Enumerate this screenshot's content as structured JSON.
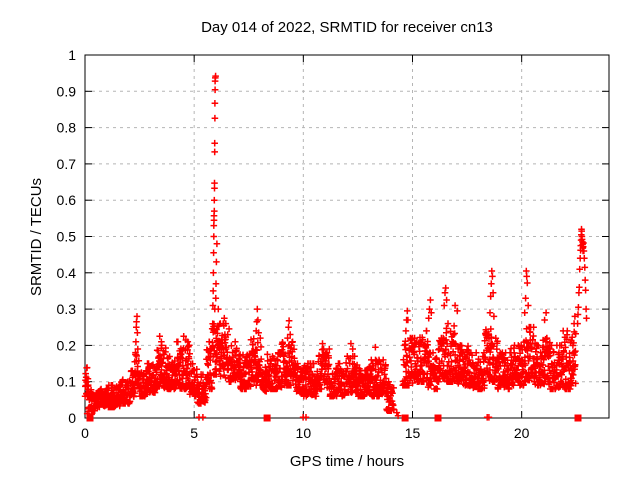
{
  "title": "Day 014 of 2022, SRMTID for receiver cn13",
  "x_axis": {
    "label": "GPS time / hours",
    "min": 0,
    "max": 24,
    "ticks": [
      [
        0,
        "0"
      ],
      [
        5,
        "5"
      ],
      [
        10,
        "10"
      ],
      [
        15,
        "15"
      ],
      [
        20,
        "20"
      ]
    ],
    "grid_values": [
      5,
      10,
      15,
      20
    ]
  },
  "y_axis": {
    "label": "SRMTID / TECUs",
    "min": 0,
    "max": 1,
    "ticks": [
      [
        0,
        "0"
      ],
      [
        0.1,
        "0.1"
      ],
      [
        0.2,
        "0.2"
      ],
      [
        0.3,
        "0.3"
      ],
      [
        0.4,
        "0.4"
      ],
      [
        0.5,
        "0.5"
      ],
      [
        0.6,
        "0.6"
      ],
      [
        0.7,
        "0.7"
      ],
      [
        0.8,
        "0.8"
      ],
      [
        0.9,
        "0.9"
      ],
      [
        1,
        "1"
      ]
    ],
    "grid_values": [
      0.1,
      0.2,
      0.3,
      0.4,
      0.5,
      0.6,
      0.7,
      0.8,
      0.9
    ]
  },
  "colors": {
    "data": "#ff0000",
    "grid": "#b5b5b5",
    "axis": "#000000",
    "background": "#ffffff",
    "text": "#000000"
  },
  "chart_data": {
    "type": "scatter",
    "title": "Day 014 of 2022, SRMTID for receiver cn13",
    "xlabel": "GPS time / hours",
    "ylabel": "SRMTID / TECUs",
    "xlim": [
      0,
      24
    ],
    "ylim": [
      0,
      1
    ],
    "grid": true,
    "legend": "none",
    "series": [
      {
        "name": "SRMTID",
        "marker": "plus",
        "color": "#ff0000",
        "band_segments_format": "[t_start_hours, t_end_hours, y_low_TECUs, y_high_TECUs, n_points]",
        "band_segments": [
          [
            0.0,
            0.15,
            0.05,
            0.17,
            16
          ],
          [
            0.15,
            0.45,
            0.02,
            0.08,
            34
          ],
          [
            0.45,
            1.05,
            0.03,
            0.08,
            70
          ],
          [
            1.05,
            1.65,
            0.03,
            0.09,
            70
          ],
          [
            1.65,
            2.1,
            0.04,
            0.11,
            52
          ],
          [
            2.1,
            2.3,
            0.05,
            0.13,
            24
          ],
          [
            2.3,
            2.48,
            0.08,
            0.19,
            20
          ],
          [
            2.48,
            2.85,
            0.06,
            0.13,
            44
          ],
          [
            2.85,
            3.25,
            0.07,
            0.15,
            48
          ],
          [
            3.25,
            3.7,
            0.08,
            0.2,
            54
          ],
          [
            3.7,
            4.2,
            0.08,
            0.17,
            60
          ],
          [
            4.2,
            4.8,
            0.08,
            0.21,
            70
          ],
          [
            4.8,
            5.15,
            0.06,
            0.15,
            42
          ],
          [
            5.15,
            5.55,
            0.04,
            0.12,
            44
          ],
          [
            5.55,
            5.82,
            0.08,
            0.21,
            32
          ],
          [
            5.82,
            6.12,
            0.12,
            0.3,
            36
          ],
          [
            6.12,
            6.6,
            0.11,
            0.26,
            56
          ],
          [
            6.6,
            7.1,
            0.1,
            0.21,
            60
          ],
          [
            7.1,
            7.6,
            0.08,
            0.18,
            60
          ],
          [
            7.6,
            8.1,
            0.09,
            0.22,
            60
          ],
          [
            8.1,
            8.35,
            0.07,
            0.14,
            28
          ],
          [
            8.35,
            9.0,
            0.08,
            0.18,
            76
          ],
          [
            9.0,
            9.6,
            0.09,
            0.21,
            70
          ],
          [
            9.6,
            10.0,
            0.07,
            0.15,
            46
          ],
          [
            10.0,
            10.6,
            0.06,
            0.15,
            70
          ],
          [
            10.6,
            11.2,
            0.08,
            0.19,
            70
          ],
          [
            11.2,
            11.9,
            0.06,
            0.15,
            80
          ],
          [
            11.9,
            12.5,
            0.07,
            0.17,
            70
          ],
          [
            12.5,
            13.1,
            0.06,
            0.14,
            70
          ],
          [
            13.1,
            13.8,
            0.06,
            0.16,
            80
          ],
          [
            13.8,
            14.15,
            0.02,
            0.1,
            36
          ],
          [
            14.55,
            15.1,
            0.09,
            0.22,
            62
          ],
          [
            15.1,
            15.7,
            0.1,
            0.24,
            68
          ],
          [
            15.7,
            16.15,
            0.08,
            0.18,
            52
          ],
          [
            16.15,
            16.5,
            0.1,
            0.22,
            40
          ],
          [
            16.5,
            17.0,
            0.1,
            0.26,
            58
          ],
          [
            17.0,
            17.6,
            0.09,
            0.2,
            68
          ],
          [
            17.6,
            18.3,
            0.08,
            0.18,
            80
          ],
          [
            18.3,
            18.9,
            0.1,
            0.25,
            66
          ],
          [
            18.9,
            19.5,
            0.08,
            0.18,
            68
          ],
          [
            19.5,
            20.1,
            0.09,
            0.2,
            68
          ],
          [
            20.1,
            20.6,
            0.1,
            0.25,
            58
          ],
          [
            20.6,
            21.3,
            0.09,
            0.22,
            80
          ],
          [
            21.3,
            21.9,
            0.08,
            0.2,
            68
          ],
          [
            21.9,
            22.48,
            0.08,
            0.24,
            66
          ]
        ],
        "feature_points_format": "[t_hours, y_TECUs]",
        "feature_points": [
          [
            0.1,
            0.012
          ],
          [
            0.18,
            0.018
          ],
          [
            0.3,
            0.01
          ],
          [
            2.28,
            0.155
          ],
          [
            2.31,
            0.175
          ],
          [
            2.33,
            0.21
          ],
          [
            2.35,
            0.25
          ],
          [
            2.36,
            0.265
          ],
          [
            2.38,
            0.28
          ],
          [
            2.4,
            0.235
          ],
          [
            2.42,
            0.19
          ],
          [
            3.42,
            0.225
          ],
          [
            3.5,
            0.21
          ],
          [
            4.52,
            0.225
          ],
          [
            4.62,
            0.215
          ],
          [
            5.22,
            0.002
          ],
          [
            5.4,
            0.002
          ],
          [
            5.86,
            0.31
          ],
          [
            5.87,
            0.35
          ],
          [
            5.88,
            0.4
          ],
          [
            5.89,
            0.455
          ],
          [
            5.9,
            0.5
          ],
          [
            5.9,
            0.53
          ],
          [
            5.91,
            0.545
          ],
          [
            5.91,
            0.557
          ],
          [
            5.92,
            0.57
          ],
          [
            5.92,
            0.6
          ],
          [
            5.93,
            0.633
          ],
          [
            5.93,
            0.647
          ],
          [
            5.94,
            0.733
          ],
          [
            5.94,
            0.757
          ],
          [
            5.95,
            0.826
          ],
          [
            5.95,
            0.867
          ],
          [
            5.96,
            0.904
          ],
          [
            5.96,
            0.928
          ],
          [
            5.97,
            0.937
          ],
          [
            5.98,
            0.942
          ],
          [
            5.99,
            0.33
          ],
          [
            6.0,
            0.37
          ],
          [
            6.02,
            0.43
          ],
          [
            6.04,
            0.48
          ],
          [
            6.38,
            0.275
          ],
          [
            6.45,
            0.26
          ],
          [
            7.84,
            0.24
          ],
          [
            7.87,
            0.265
          ],
          [
            7.89,
            0.3
          ],
          [
            7.92,
            0.27
          ],
          [
            7.95,
            0.235
          ],
          [
            9.28,
            0.22
          ],
          [
            9.32,
            0.25
          ],
          [
            9.35,
            0.268
          ],
          [
            9.4,
            0.23
          ],
          [
            9.99,
            0.002
          ],
          [
            10.12,
            0.002
          ],
          [
            10.88,
            0.205
          ],
          [
            10.93,
            0.19
          ],
          [
            12.18,
            0.205
          ],
          [
            12.26,
            0.19
          ],
          [
            13.3,
            0.195
          ],
          [
            14.28,
            0.015
          ],
          [
            14.34,
            0.006
          ],
          [
            14.7,
            0.24
          ],
          [
            14.73,
            0.27
          ],
          [
            14.76,
            0.295
          ],
          [
            14.79,
            0.27
          ],
          [
            15.74,
            0.275
          ],
          [
            15.78,
            0.3
          ],
          [
            15.82,
            0.325
          ],
          [
            15.86,
            0.29
          ],
          [
            16.45,
            0.31
          ],
          [
            16.49,
            0.345
          ],
          [
            16.52,
            0.358
          ],
          [
            16.56,
            0.325
          ],
          [
            16.95,
            0.31
          ],
          [
            17.05,
            0.295
          ],
          [
            18.42,
            0.002
          ],
          [
            18.5,
            0.002
          ],
          [
            18.55,
            0.29
          ],
          [
            18.58,
            0.335
          ],
          [
            18.61,
            0.37
          ],
          [
            18.63,
            0.405
          ],
          [
            18.66,
            0.39
          ],
          [
            18.69,
            0.345
          ],
          [
            18.73,
            0.28
          ],
          [
            20.14,
            0.29
          ],
          [
            20.18,
            0.33
          ],
          [
            20.21,
            0.405
          ],
          [
            20.23,
            0.39
          ],
          [
            20.26,
            0.372
          ],
          [
            20.3,
            0.31
          ],
          [
            21.05,
            0.27
          ],
          [
            21.12,
            0.29
          ],
          [
            22.4,
            0.26
          ],
          [
            22.44,
            0.28
          ],
          [
            22.56,
            0.26
          ],
          [
            22.58,
            0.285
          ],
          [
            22.6,
            0.305
          ],
          [
            22.62,
            0.345
          ],
          [
            22.64,
            0.36
          ],
          [
            22.66,
            0.41
          ],
          [
            22.68,
            0.44
          ],
          [
            22.7,
            0.462
          ],
          [
            22.71,
            0.475
          ],
          [
            22.72,
            0.49
          ],
          [
            22.73,
            0.505
          ],
          [
            22.74,
            0.52
          ],
          [
            22.75,
            0.515
          ],
          [
            22.76,
            0.5
          ],
          [
            22.77,
            0.492
          ],
          [
            22.78,
            0.485
          ],
          [
            22.79,
            0.478
          ],
          [
            22.8,
            0.468
          ],
          [
            22.81,
            0.46
          ],
          [
            22.82,
            0.472
          ],
          [
            22.83,
            0.482
          ],
          [
            22.85,
            0.46
          ],
          [
            22.87,
            0.44
          ],
          [
            22.89,
            0.415
          ],
          [
            22.91,
            0.38
          ],
          [
            22.93,
            0.352
          ],
          [
            22.95,
            0.3
          ],
          [
            22.97,
            0.275
          ]
        ]
      },
      {
        "name": "axis flag markers",
        "marker": "filled-square",
        "color": "#ff0000",
        "points": [
          [
            0.23,
            0
          ],
          [
            8.34,
            0
          ],
          [
            14.66,
            0
          ],
          [
            16.17,
            0
          ],
          [
            22.58,
            0
          ]
        ]
      }
    ]
  }
}
